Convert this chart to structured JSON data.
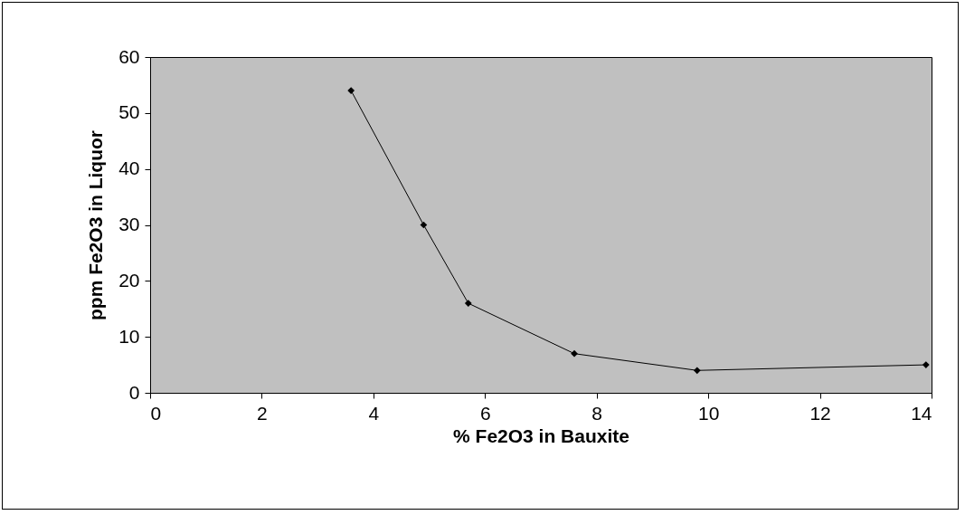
{
  "chart_data": {
    "type": "line",
    "xlabel": "% Fe2O3 in Bauxite",
    "ylabel": "ppm Fe2O3 in Liquor",
    "x": [
      3.6,
      4.9,
      5.7,
      7.6,
      9.8,
      13.9
    ],
    "series": [
      {
        "color": "#000000",
        "values": [
          54,
          30,
          16,
          7,
          4,
          5
        ]
      }
    ],
    "xlim": [
      0,
      14
    ],
    "xticks": [
      0,
      2,
      4,
      6,
      8,
      10,
      12,
      14
    ],
    "ylim": [
      0,
      60
    ],
    "yticks": [
      0,
      10,
      20,
      30,
      40,
      50,
      60
    ],
    "marker": "diamond",
    "line_style": "solid"
  }
}
